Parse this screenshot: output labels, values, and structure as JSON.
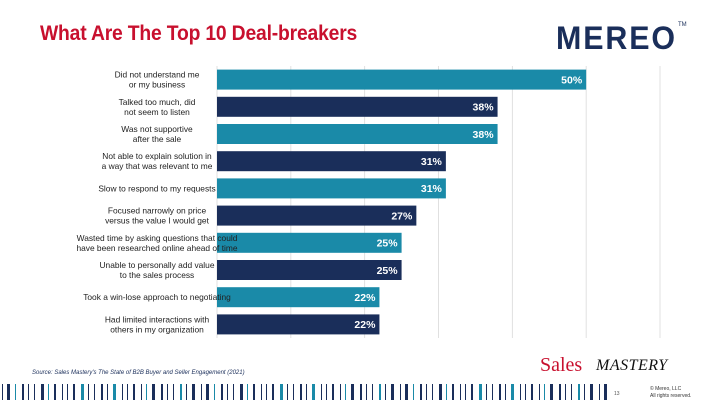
{
  "slide": {
    "title": "What Are The Top 10 Deal-breakers",
    "source": "Source: Sales Mastery's The State of B2B Buyer and Seller Engagement (2021)",
    "page_number": "13",
    "copyright_line1": "© Mereo, LLC",
    "copyright_line2": "All rights reserved."
  },
  "logos": {
    "mereo": "MEREO",
    "mereo_tm": "TM",
    "sales": "Sales",
    "mastery": "MASTERY"
  },
  "colors": {
    "title": "#c8102e",
    "teal": "#1a8aa8",
    "navy": "#1a2e5a"
  },
  "chart_data": {
    "type": "bar",
    "orientation": "horizontal",
    "title": "What Are The Top 10 Deal-breakers",
    "categories": [
      [
        "Did not understand me",
        "or my business"
      ],
      [
        "Talked too much, did",
        "not seem to listen"
      ],
      [
        "Was not supportive",
        "after the sale"
      ],
      [
        "Not able to explain solution in",
        "a way that was relevant to me"
      ],
      [
        "Slow to respond to my requests"
      ],
      [
        "Focused narrowly on price",
        "versus the value I would get"
      ],
      [
        "Wasted time by asking questions that could",
        "have been researched online ahead of time"
      ],
      [
        "Unable to personally add value",
        "to the sales process"
      ],
      [
        "Took a win-lose approach to negotiating"
      ],
      [
        "Had limited interactions with",
        "others in my organization"
      ]
    ],
    "values": [
      50,
      38,
      38,
      31,
      31,
      27,
      25,
      25,
      22,
      22
    ],
    "value_labels": [
      "50%",
      "38%",
      "38%",
      "31%",
      "31%",
      "27%",
      "25%",
      "25%",
      "22%",
      "22%"
    ],
    "bar_colors": [
      "#1a8aa8",
      "#1a2e5a",
      "#1a8aa8",
      "#1a2e5a",
      "#1a8aa8",
      "#1a2e5a",
      "#1a8aa8",
      "#1a2e5a",
      "#1a8aa8",
      "#1a2e5a"
    ],
    "xlim": [
      0,
      60
    ],
    "grid": true,
    "xlabel": "",
    "ylabel": ""
  }
}
